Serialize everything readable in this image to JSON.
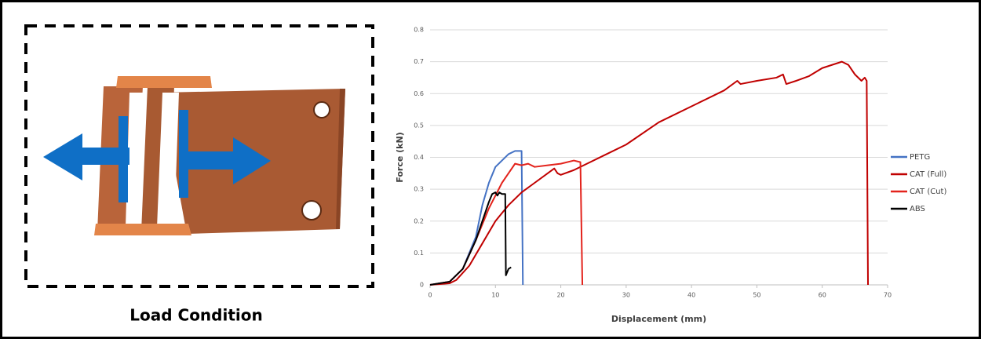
{
  "figure": {
    "caption": "Load Condition"
  },
  "chart_data": {
    "type": "line",
    "x_label": "Displacement (mm)",
    "y_label": "Force (kN)",
    "xlim": [
      0,
      70
    ],
    "ylim": [
      0,
      0.8
    ],
    "xticks": [
      0,
      10,
      20,
      30,
      40,
      50,
      60,
      70
    ],
    "yticks": [
      0,
      0.1,
      0.2,
      0.3,
      0.4,
      0.5,
      0.6,
      0.7,
      0.8
    ],
    "grid": true,
    "legend": "right",
    "series": [
      {
        "name": "PETG",
        "color": "#4472c4",
        "x": [
          0,
          3,
          5,
          7,
          8,
          9,
          10,
          11,
          12,
          13,
          14,
          14.2
        ],
        "values": [
          0,
          0.01,
          0.05,
          0.15,
          0.25,
          0.32,
          0.37,
          0.39,
          0.41,
          0.42,
          0.42,
          0
        ]
      },
      {
        "name": "CAT (Full)",
        "color": "#c00000",
        "x": [
          0,
          3,
          4,
          6,
          8,
          10,
          12,
          14,
          16,
          18,
          19,
          19.5,
          20,
          22,
          24,
          27,
          30,
          35,
          40,
          45,
          47,
          47.5,
          50,
          53,
          54,
          54.5,
          56,
          58,
          60,
          63,
          64,
          65,
          66,
          66.5,
          66.8,
          67
        ],
        "values": [
          0,
          0.005,
          0.015,
          0.06,
          0.13,
          0.2,
          0.25,
          0.29,
          0.32,
          0.35,
          0.365,
          0.35,
          0.345,
          0.36,
          0.38,
          0.41,
          0.44,
          0.51,
          0.56,
          0.61,
          0.64,
          0.63,
          0.64,
          0.65,
          0.66,
          0.63,
          0.64,
          0.655,
          0.68,
          0.7,
          0.69,
          0.66,
          0.64,
          0.65,
          0.64,
          0
        ]
      },
      {
        "name": "CAT (Cut)",
        "color": "#e3231c",
        "x": [
          0,
          3,
          5,
          7,
          9,
          11,
          12,
          13,
          14,
          15,
          16,
          18,
          20,
          22,
          23,
          23.3
        ],
        "values": [
          0,
          0.01,
          0.05,
          0.14,
          0.24,
          0.32,
          0.35,
          0.38,
          0.375,
          0.38,
          0.37,
          0.375,
          0.38,
          0.39,
          0.385,
          0
        ]
      },
      {
        "name": "ABS",
        "color": "#000000",
        "x": [
          0,
          3,
          5,
          7,
          8,
          9,
          9.5,
          10,
          10.3,
          10.6,
          11,
          11.5,
          11.6,
          12,
          12.4
        ],
        "values": [
          0,
          0.01,
          0.05,
          0.14,
          0.2,
          0.26,
          0.285,
          0.29,
          0.28,
          0.29,
          0.285,
          0.285,
          0.03,
          0.05,
          0.055
        ]
      }
    ]
  }
}
